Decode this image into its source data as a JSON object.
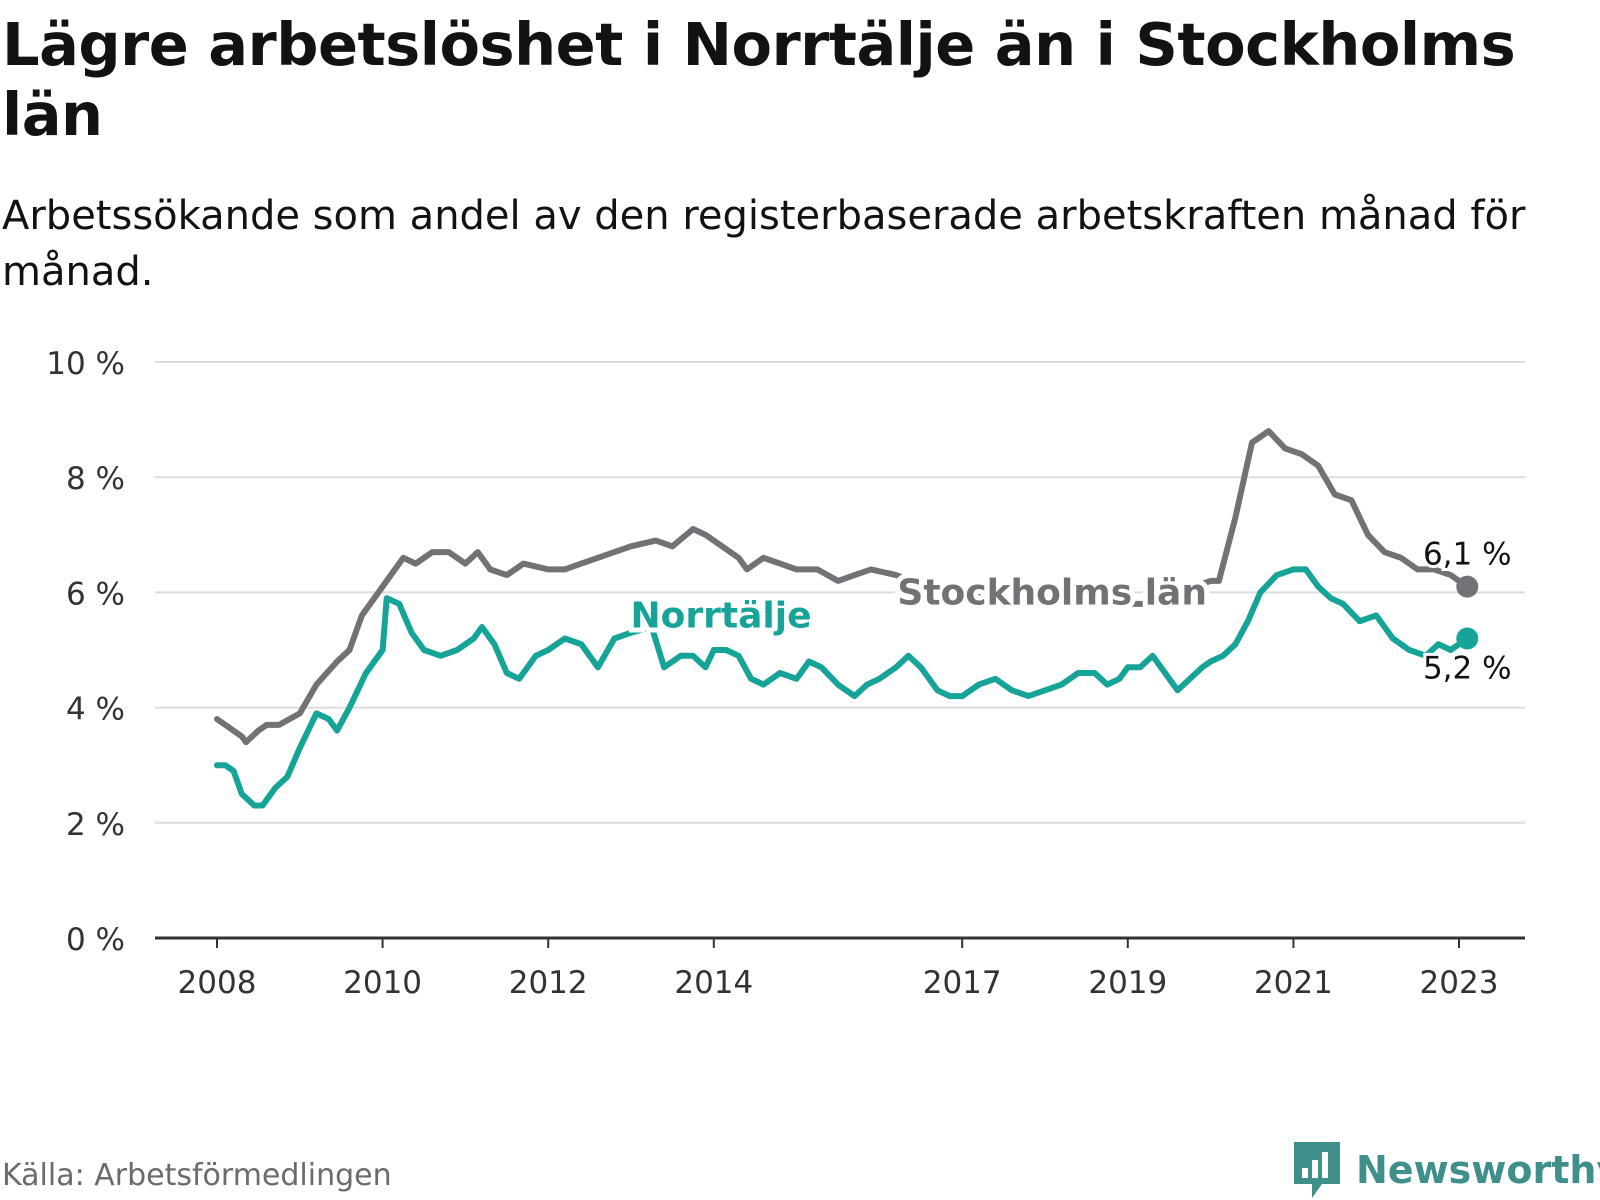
{
  "title": "Lägre arbetslöshet i Norrtälje än i Stockholms län",
  "subtitle": "Arbetssökande som andel av den registerbaserade arbetskraften månad för månad.",
  "source": "Källa: Arbetsförmedlingen",
  "brand": {
    "name": "Newsworthy",
    "icon": "newsworthy-logo-icon",
    "color": "#3f8f8a"
  },
  "chart_data": {
    "type": "line",
    "title": "Lägre arbetslöshet i Norrtälje än i Stockholms län",
    "ylim": [
      0,
      10
    ],
    "xlim": [
      2008,
      2023.5
    ],
    "yticks": [
      0,
      2,
      4,
      6,
      8,
      10
    ],
    "ytick_labels": [
      "0 %",
      "2 %",
      "4 %",
      "6 %",
      "8 %",
      "10 %"
    ],
    "xticks": [
      2008,
      2010,
      2012,
      2014,
      2017,
      2019,
      2021,
      2023
    ],
    "xtick_labels": [
      "2008",
      "2010",
      "2012",
      "2014",
      "2017",
      "2019",
      "2021",
      "2023"
    ],
    "grid": true,
    "series": [
      {
        "name": "Stockholms län",
        "color": "#727176",
        "end_label": "6,1 %",
        "points": [
          [
            2008.0,
            3.8
          ],
          [
            2008.3,
            3.5
          ],
          [
            2008.35,
            3.4
          ],
          [
            2008.5,
            3.6
          ],
          [
            2008.6,
            3.7
          ],
          [
            2008.75,
            3.7
          ],
          [
            2009.0,
            3.9
          ],
          [
            2009.2,
            4.4
          ],
          [
            2009.45,
            4.8
          ],
          [
            2009.6,
            5.0
          ],
          [
            2009.75,
            5.6
          ],
          [
            2010.0,
            6.1
          ],
          [
            2010.25,
            6.6
          ],
          [
            2010.4,
            6.5
          ],
          [
            2010.6,
            6.7
          ],
          [
            2010.8,
            6.7
          ],
          [
            2011.0,
            6.5
          ],
          [
            2011.15,
            6.7
          ],
          [
            2011.3,
            6.4
          ],
          [
            2011.5,
            6.3
          ],
          [
            2011.7,
            6.5
          ],
          [
            2012.0,
            6.4
          ],
          [
            2012.2,
            6.4
          ],
          [
            2012.4,
            6.5
          ],
          [
            2012.6,
            6.6
          ],
          [
            2012.8,
            6.7
          ],
          [
            2013.0,
            6.8
          ],
          [
            2013.3,
            6.9
          ],
          [
            2013.5,
            6.8
          ],
          [
            2013.75,
            7.1
          ],
          [
            2013.9,
            7.0
          ],
          [
            2014.1,
            6.8
          ],
          [
            2014.3,
            6.6
          ],
          [
            2014.4,
            6.4
          ],
          [
            2014.6,
            6.6
          ],
          [
            2014.8,
            6.5
          ],
          [
            2015.0,
            6.4
          ],
          [
            2015.25,
            6.4
          ],
          [
            2015.5,
            6.2
          ],
          [
            2015.7,
            6.3
          ],
          [
            2015.9,
            6.4
          ],
          [
            2016.2,
            6.3
          ],
          [
            2016.4,
            6.2
          ],
          [
            2016.7,
            6.1
          ],
          [
            2017.0,
            6.0
          ],
          [
            2017.3,
            5.9
          ],
          [
            2017.6,
            5.9
          ],
          [
            2018.0,
            5.9
          ],
          [
            2018.3,
            5.8
          ],
          [
            2018.7,
            5.8
          ],
          [
            2019.0,
            5.8
          ],
          [
            2019.3,
            5.8
          ],
          [
            2019.6,
            6.0
          ],
          [
            2020.0,
            6.2
          ],
          [
            2020.1,
            6.2
          ],
          [
            2020.3,
            7.3
          ],
          [
            2020.5,
            8.6
          ],
          [
            2020.7,
            8.8
          ],
          [
            2020.9,
            8.5
          ],
          [
            2021.1,
            8.4
          ],
          [
            2021.3,
            8.2
          ],
          [
            2021.5,
            7.7
          ],
          [
            2021.7,
            7.6
          ],
          [
            2021.9,
            7.0
          ],
          [
            2022.1,
            6.7
          ],
          [
            2022.3,
            6.6
          ],
          [
            2022.5,
            6.4
          ],
          [
            2022.7,
            6.4
          ],
          [
            2022.9,
            6.3
          ],
          [
            2023.0,
            6.2
          ],
          [
            2023.1,
            6.1
          ]
        ]
      },
      {
        "name": "Norrtälje",
        "color": "#16a398",
        "end_label": "5,2 %",
        "points": [
          [
            2008.0,
            3.0
          ],
          [
            2008.1,
            3.0
          ],
          [
            2008.2,
            2.9
          ],
          [
            2008.3,
            2.5
          ],
          [
            2008.45,
            2.3
          ],
          [
            2008.55,
            2.3
          ],
          [
            2008.7,
            2.6
          ],
          [
            2008.85,
            2.8
          ],
          [
            2009.0,
            3.3
          ],
          [
            2009.2,
            3.9
          ],
          [
            2009.35,
            3.8
          ],
          [
            2009.45,
            3.6
          ],
          [
            2009.6,
            4.0
          ],
          [
            2009.8,
            4.6
          ],
          [
            2010.0,
            5.0
          ],
          [
            2010.05,
            5.9
          ],
          [
            2010.2,
            5.8
          ],
          [
            2010.35,
            5.3
          ],
          [
            2010.5,
            5.0
          ],
          [
            2010.7,
            4.9
          ],
          [
            2010.9,
            5.0
          ],
          [
            2011.1,
            5.2
          ],
          [
            2011.2,
            5.4
          ],
          [
            2011.35,
            5.1
          ],
          [
            2011.5,
            4.6
          ],
          [
            2011.65,
            4.5
          ],
          [
            2011.85,
            4.9
          ],
          [
            2012.0,
            5.0
          ],
          [
            2012.2,
            5.2
          ],
          [
            2012.4,
            5.1
          ],
          [
            2012.6,
            4.7
          ],
          [
            2012.8,
            5.2
          ],
          [
            2013.0,
            5.3
          ],
          [
            2013.25,
            5.4
          ],
          [
            2013.4,
            4.7
          ],
          [
            2013.6,
            4.9
          ],
          [
            2013.75,
            4.9
          ],
          [
            2013.9,
            4.7
          ],
          [
            2014.0,
            5.0
          ],
          [
            2014.15,
            5.0
          ],
          [
            2014.3,
            4.9
          ],
          [
            2014.45,
            4.5
          ],
          [
            2014.6,
            4.4
          ],
          [
            2014.8,
            4.6
          ],
          [
            2015.0,
            4.5
          ],
          [
            2015.15,
            4.8
          ],
          [
            2015.3,
            4.7
          ],
          [
            2015.5,
            4.4
          ],
          [
            2015.7,
            4.2
          ],
          [
            2015.85,
            4.4
          ],
          [
            2016.0,
            4.5
          ],
          [
            2016.2,
            4.7
          ],
          [
            2016.35,
            4.9
          ],
          [
            2016.5,
            4.7
          ],
          [
            2016.7,
            4.3
          ],
          [
            2016.85,
            4.2
          ],
          [
            2017.0,
            4.2
          ],
          [
            2017.2,
            4.4
          ],
          [
            2017.4,
            4.5
          ],
          [
            2017.6,
            4.3
          ],
          [
            2017.8,
            4.2
          ],
          [
            2018.0,
            4.3
          ],
          [
            2018.2,
            4.4
          ],
          [
            2018.4,
            4.6
          ],
          [
            2018.6,
            4.6
          ],
          [
            2018.75,
            4.4
          ],
          [
            2018.9,
            4.5
          ],
          [
            2019.0,
            4.7
          ],
          [
            2019.15,
            4.7
          ],
          [
            2019.3,
            4.9
          ],
          [
            2019.45,
            4.6
          ],
          [
            2019.6,
            4.3
          ],
          [
            2019.75,
            4.5
          ],
          [
            2019.9,
            4.7
          ],
          [
            2020.0,
            4.8
          ],
          [
            2020.15,
            4.9
          ],
          [
            2020.3,
            5.1
          ],
          [
            2020.45,
            5.5
          ],
          [
            2020.6,
            6.0
          ],
          [
            2020.8,
            6.3
          ],
          [
            2021.0,
            6.4
          ],
          [
            2021.15,
            6.4
          ],
          [
            2021.3,
            6.1
          ],
          [
            2021.45,
            5.9
          ],
          [
            2021.6,
            5.8
          ],
          [
            2021.8,
            5.5
          ],
          [
            2022.0,
            5.6
          ],
          [
            2022.2,
            5.2
          ],
          [
            2022.4,
            5.0
          ],
          [
            2022.6,
            4.9
          ],
          [
            2022.75,
            5.1
          ],
          [
            2022.9,
            5.0
          ],
          [
            2023.0,
            5.1
          ],
          [
            2023.1,
            5.2
          ]
        ]
      }
    ],
    "annotations": [
      {
        "text": "Stockholms län",
        "series": "Stockholms län",
        "x": 2017.0,
        "y": 6.0
      },
      {
        "text": "Norrtälje",
        "series": "Norrtälje",
        "x": 2013.0,
        "y": 5.6
      }
    ]
  }
}
